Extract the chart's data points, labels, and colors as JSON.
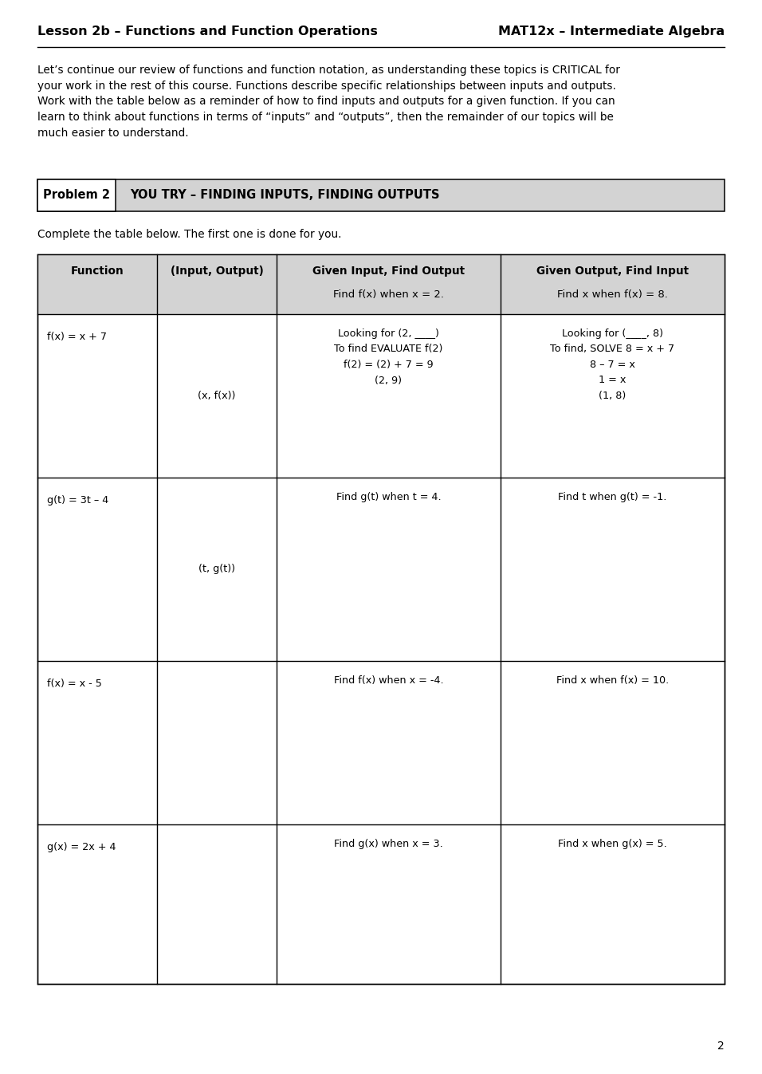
{
  "page_title_left": "Lesson 2b – Functions and Function Operations",
  "page_title_right": "MAT12x – Intermediate Algebra",
  "intro_text": "Let’s continue our review of functions and function notation, as understanding these topics is CRITICAL for\nyour work in the rest of this course. Functions describe specific relationships between inputs and outputs.\nWork with the table below as a reminder of how to find inputs and outputs for a given function. If you can\nlearn to think about functions in terms of “inputs” and “outputs”, then the remainder of our topics will be\nmuch easier to understand.",
  "problem_label": "Problem 2",
  "problem_title": "YOU TRY – FINDING INPUTS, FINDING OUTPUTS",
  "instruction": "Complete the table below. The first one is done for you.",
  "col_headers": [
    "Function",
    "(Input, Output)",
    "Given Input, Find Output",
    "Given Output, Find Input"
  ],
  "col_subheaders": [
    "",
    "",
    "Find f(x) when x = 2.",
    "Find x when f(x) = 8."
  ],
  "rows": [
    {
      "function": "f(x) = x + 7",
      "io_pair": "(x, f(x))",
      "given_input_content": "Looking for (2, ____)\nTo find EVALUATE f(2)\nf(2) = (2) + 7 = 9\n(2, 9)",
      "given_output_content": "Looking for (____, 8)\nTo find, SOLVE 8 = x + 7\n8 – 7 = x\n1 = x\n(1, 8)"
    },
    {
      "function": "g(t) = 3t – 4",
      "io_pair": "(t, g(t))",
      "given_input_header": "Find g(t) when t = 4.",
      "given_output_header": "Find t when g(t) = -1.",
      "given_input_content": "",
      "given_output_content": ""
    },
    {
      "function": "f(x) = x - 5",
      "io_pair": "",
      "given_input_header": "Find f(x) when x = -4.",
      "given_output_header": "Find x when f(x) = 10.",
      "given_input_content": "",
      "given_output_content": ""
    },
    {
      "function": "g(x) = 2x + 4",
      "io_pair": "",
      "given_input_header": "Find g(x) when x = 3.",
      "given_output_header": "Find x when g(x) = 5.",
      "given_input_content": "",
      "given_output_content": ""
    }
  ],
  "page_number": "2",
  "bg_color": "#ffffff",
  "header_bg": "#d3d3d3",
  "problem_bar_bg": "#d3d3d3",
  "border_color": "#000000",
  "text_color": "#000000",
  "title_fontsize": 11.5,
  "intro_fontsize": 9.8,
  "problem_fontsize": 10.5,
  "table_header_fontsize": 9.8,
  "table_body_fontsize": 9.2
}
